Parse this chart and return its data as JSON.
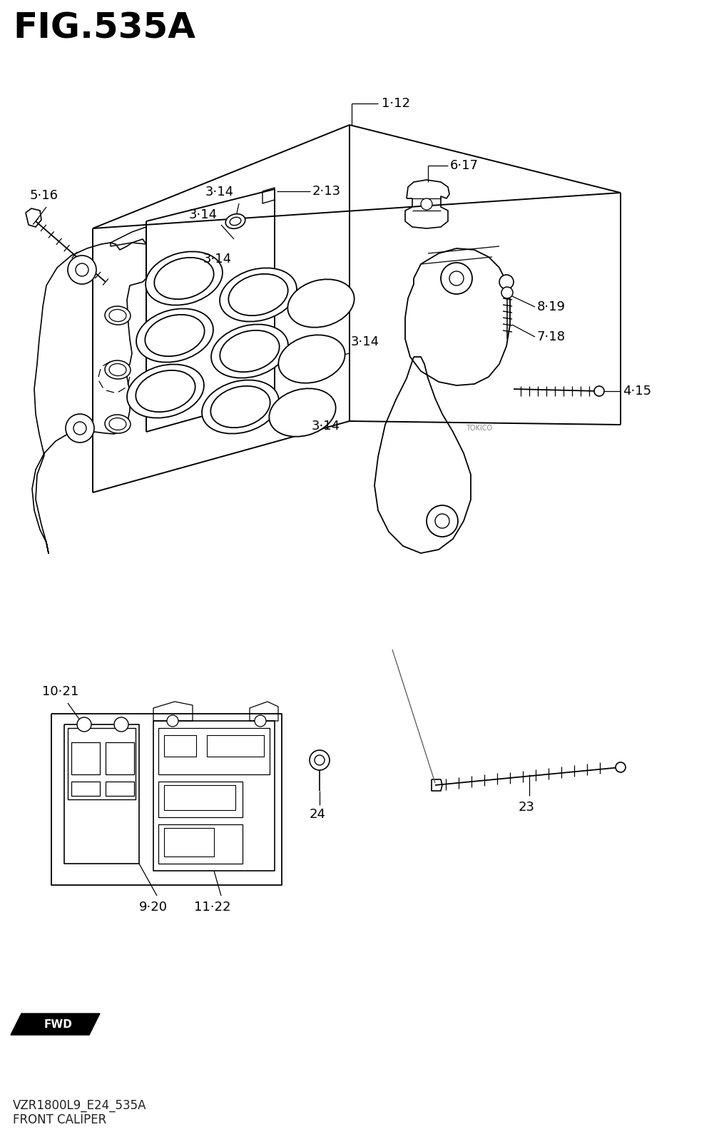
{
  "title": "FIG.535A",
  "subtitle1": "VZR1800L9_E24_535A",
  "subtitle2": "FRONT CALIPER",
  "bg_color": "#ffffff",
  "line_color": "#000000",
  "title_fontsize": 36,
  "label_fontsize": 13,
  "footer_fontsize": 12,
  "label_dot": "·"
}
